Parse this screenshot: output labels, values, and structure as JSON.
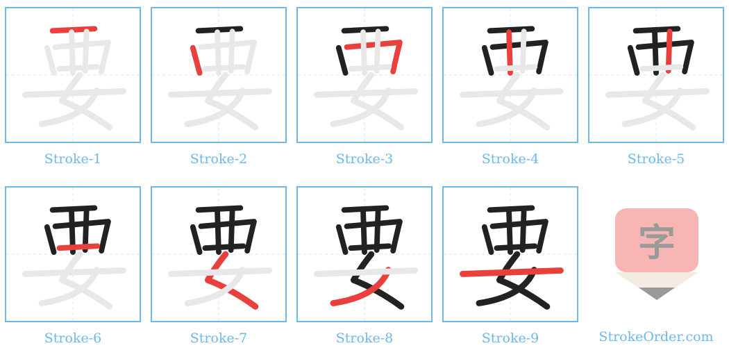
{
  "character": "要",
  "colors": {
    "border": "#6cb8ea",
    "guide": "#cfe8f8",
    "ghost": "#e8e8e8",
    "done": "#222222",
    "current": "#e8413d",
    "caption": "#6cb8ea"
  },
  "steps": [
    {
      "label": "Stroke-1"
    },
    {
      "label": "Stroke-2"
    },
    {
      "label": "Stroke-3"
    },
    {
      "label": "Stroke-4"
    },
    {
      "label": "Stroke-5"
    },
    {
      "label": "Stroke-6"
    },
    {
      "label": "Stroke-7"
    },
    {
      "label": "Stroke-8"
    },
    {
      "label": "Stroke-9"
    }
  ],
  "logo": {
    "glyph": "字",
    "icon": "pencil-icon"
  },
  "site": "StrokeOrder.com"
}
